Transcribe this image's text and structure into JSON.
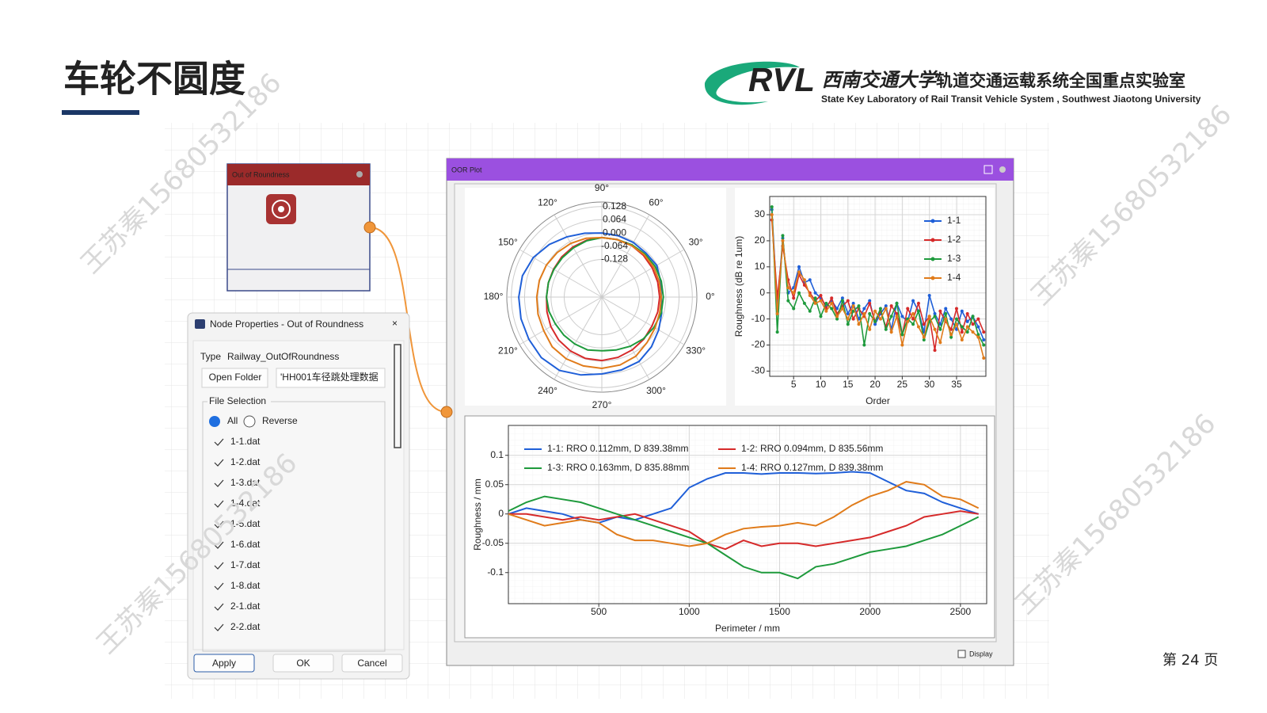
{
  "header": {
    "title": "车轮不圆度",
    "logo_mark": "RVL",
    "university": "西南交通大学",
    "lab": "轨道交通运载系统全国重点实验室",
    "lab_en": "State Key Laboratory of Rail Transit Vehicle System , Southwest Jiaotong University"
  },
  "watermark": "王苏秦15680532186",
  "page_number": "第 24 页",
  "node": {
    "title": "Out of Roundness"
  },
  "dialog": {
    "title": "Node Properties - Out of Roundness",
    "type_label": "Type",
    "type_value": "Railway_OutOfRoundness",
    "open_folder": "Open Folder",
    "folder_path": "'HH001车径跳处理数据",
    "group": "File Selection",
    "all": "All",
    "reverse": "Reverse",
    "files": [
      "1-1.dat",
      "1-2.dat",
      "1-3.dat",
      "1-4.dat",
      "1-5.dat",
      "1-6.dat",
      "1-7.dat",
      "1-8.dat",
      "2-1.dat",
      "2-2.dat"
    ],
    "buttons": [
      "Apply",
      "OK",
      "Cancel"
    ]
  },
  "plot_window": {
    "title": "OOR Plot",
    "display": "Display"
  },
  "chart_data": [
    {
      "type": "polar",
      "theta": [
        0,
        15,
        30,
        45,
        60,
        75,
        90,
        105,
        120,
        135,
        150,
        165,
        180,
        195,
        210,
        225,
        240,
        255,
        270,
        285,
        300,
        315,
        330,
        345
      ],
      "rlim": [
        -0.31,
        0.15
      ],
      "rticks": [
        0.128,
        0.064,
        {
          "value": 0,
          "label": "0.000"
        },
        -0.064,
        -0.128
      ],
      "thetaticks": [
        {
          "value": 0,
          "label": "0°"
        },
        {
          "value": 30,
          "label": "30°"
        },
        {
          "value": 60,
          "label": "60°"
        },
        {
          "value": 90,
          "label": "90°"
        },
        {
          "value": 120,
          "label": "120°"
        },
        {
          "value": 150,
          "label": "150°"
        },
        {
          "value": 180,
          "label": "180°"
        },
        {
          "value": 210,
          "label": "210°"
        },
        {
          "value": 240,
          "label": "240°"
        },
        {
          "value": 270,
          "label": "270°"
        },
        {
          "value": 300,
          "label": "300°"
        },
        {
          "value": 330,
          "label": "330°"
        }
      ],
      "series": [
        {
          "name": "1-1",
          "color": "#1f5fd8",
          "values": [
            -0.022,
            -0.015,
            -0.003,
            -0.008,
            -0.005,
            -0.003,
            0.0,
            0.01,
            0.027,
            0.05,
            0.073,
            0.088,
            0.092,
            0.095,
            0.098,
            0.104,
            0.1,
            0.08,
            0.062,
            0.055,
            0.05,
            0.03,
            0.008,
            -0.01
          ]
        },
        {
          "name": "1-2",
          "color": "#d62a2a",
          "values": [
            -0.03,
            -0.03,
            -0.028,
            -0.025,
            -0.022,
            -0.022,
            -0.022,
            -0.025,
            -0.03,
            -0.035,
            -0.04,
            -0.042,
            -0.042,
            -0.035,
            -0.025,
            -0.015,
            -0.008,
            -0.003,
            -0.003,
            -0.008,
            -0.015,
            -0.022,
            -0.03,
            -0.03
          ]
        },
        {
          "name": "1-3",
          "color": "#1e9a3c",
          "values": [
            -0.012,
            -0.012,
            -0.012,
            -0.015,
            -0.018,
            -0.022,
            -0.022,
            -0.028,
            -0.035,
            -0.04,
            -0.042,
            -0.042,
            -0.042,
            -0.045,
            -0.05,
            -0.05,
            -0.048,
            -0.045,
            -0.05,
            -0.045,
            -0.035,
            -0.025,
            -0.018,
            -0.012
          ]
        },
        {
          "name": "1-4",
          "color": "#e07b1a",
          "values": [
            -0.022,
            -0.022,
            -0.02,
            -0.02,
            -0.022,
            -0.022,
            -0.022,
            -0.015,
            -0.01,
            -0.005,
            0.0,
            0.003,
            0.005,
            0.01,
            0.015,
            0.03,
            0.035,
            0.035,
            0.035,
            0.03,
            0.02,
            0.0,
            -0.012,
            -0.02
          ]
        }
      ]
    },
    {
      "type": "line",
      "markers": true,
      "grid": true,
      "legend": "upper right",
      "xlabel": "Order",
      "ylabel": "Roughness (dB re 1um)",
      "x": [
        1,
        2,
        3,
        4,
        5,
        6,
        7,
        8,
        9,
        10,
        11,
        12,
        13,
        14,
        15,
        16,
        17,
        18,
        19,
        20,
        21,
        22,
        23,
        24,
        25,
        26,
        27,
        28,
        29,
        30,
        31,
        32,
        33,
        34,
        35,
        36,
        37,
        38,
        39,
        40
      ],
      "xlim": [
        0.6,
        40.4
      ],
      "xticks": [
        5,
        10,
        15,
        20,
        25,
        30,
        35
      ],
      "ylim": [
        -32,
        37
      ],
      "yticks": [
        -30,
        -20,
        -10,
        0,
        10,
        20,
        30
      ],
      "series": [
        {
          "name": "1-1",
          "color": "#1f5fd8",
          "values": [
            32,
            -5,
            21,
            0,
            2,
            10,
            4,
            5,
            0,
            -2,
            -5,
            -3,
            -6,
            -2,
            -8,
            -4,
            -10,
            -6,
            -3,
            -12,
            -8,
            -5,
            -14,
            -4,
            -9,
            -11,
            -3,
            -7,
            -15,
            -1,
            -8,
            -12,
            -6,
            -10,
            -14,
            -7,
            -11,
            -9,
            -13,
            -18
          ]
        },
        {
          "name": "1-2",
          "color": "#d62a2a",
          "values": [
            28,
            -2,
            18,
            5,
            -2,
            7,
            3,
            0,
            -3,
            -1,
            -6,
            -2,
            -8,
            -5,
            -3,
            -10,
            -6,
            -9,
            -4,
            -11,
            -7,
            -13,
            -5,
            -8,
            -16,
            -6,
            -10,
            -4,
            -12,
            -9,
            -22,
            -7,
            -11,
            -14,
            -6,
            -15,
            -8,
            -12,
            -10,
            -15
          ]
        },
        {
          "name": "1-3",
          "color": "#1e9a3c",
          "values": [
            33,
            -15,
            22,
            -3,
            -6,
            0,
            -4,
            -7,
            -2,
            -9,
            -4,
            -6,
            -10,
            -3,
            -12,
            -7,
            -5,
            -20,
            -8,
            -11,
            -6,
            -14,
            -9,
            -4,
            -16,
            -10,
            -12,
            -7,
            -18,
            -11,
            -9,
            -14,
            -8,
            -17,
            -10,
            -13,
            -15,
            -9,
            -16,
            -20
          ]
        },
        {
          "name": "1-4",
          "color": "#e07b1a",
          "values": [
            30,
            -8,
            20,
            2,
            0,
            8,
            5,
            -1,
            -4,
            -3,
            -7,
            -4,
            -9,
            -6,
            -10,
            -5,
            -12,
            -8,
            -14,
            -7,
            -10,
            -6,
            -15,
            -9,
            -20,
            -11,
            -8,
            -13,
            -17,
            -9,
            -14,
            -19,
            -10,
            -16,
            -12,
            -18,
            -13,
            -15,
            -17,
            -25
          ]
        }
      ]
    },
    {
      "type": "line",
      "markers": false,
      "grid": true,
      "legend": "upper left",
      "legend_columns": 2,
      "xlabel": "Perimeter / mm",
      "ylabel": "Roughness / mm",
      "x": [
        0,
        100,
        200,
        300,
        400,
        500,
        600,
        700,
        800,
        900,
        1000,
        1100,
        1200,
        1300,
        1400,
        1500,
        1600,
        1700,
        1800,
        1900,
        2000,
        2100,
        2200,
        2300,
        2400,
        2500,
        2600
      ],
      "xlim": [
        0,
        2645
      ],
      "xticks": [
        500,
        1000,
        1500,
        2000,
        2500
      ],
      "ylim": [
        -0.153,
        0.151
      ],
      "yticks": [
        0.1,
        0.05,
        0,
        -0.05,
        -0.1
      ],
      "series": [
        {
          "name": "1-1: RRO 0.112mm, D 839.38mm",
          "color": "#1f5fd8",
          "values": [
            0.0,
            0.01,
            0.005,
            0.0,
            -0.01,
            -0.015,
            -0.005,
            -0.01,
            0.0,
            0.01,
            0.045,
            0.06,
            0.07,
            0.07,
            0.068,
            0.07,
            0.07,
            0.069,
            0.07,
            0.072,
            0.07,
            0.055,
            0.04,
            0.035,
            0.02,
            0.01,
            0.0
          ]
        },
        {
          "name": "1-2: RRO 0.094mm, D 835.56mm",
          "color": "#d62a2a",
          "values": [
            0.0,
            0.0,
            -0.005,
            -0.01,
            -0.005,
            -0.01,
            -0.005,
            0.0,
            -0.01,
            -0.02,
            -0.03,
            -0.05,
            -0.06,
            -0.045,
            -0.055,
            -0.05,
            -0.05,
            -0.055,
            -0.05,
            -0.045,
            -0.04,
            -0.03,
            -0.02,
            -0.005,
            0.0,
            0.005,
            0.0
          ]
        },
        {
          "name": "1-3: RRO 0.163mm, D 835.88mm",
          "color": "#1e9a3c",
          "values": [
            0.005,
            0.02,
            0.03,
            0.025,
            0.02,
            0.01,
            0.0,
            -0.01,
            -0.02,
            -0.03,
            -0.04,
            -0.05,
            -0.07,
            -0.09,
            -0.1,
            -0.1,
            -0.11,
            -0.09,
            -0.085,
            -0.075,
            -0.065,
            -0.06,
            -0.055,
            -0.045,
            -0.035,
            -0.02,
            -0.005
          ]
        },
        {
          "name": "1-4: RRO 0.127mm, D 839.38mm",
          "color": "#e07b1a",
          "values": [
            0.0,
            -0.01,
            -0.02,
            -0.015,
            -0.01,
            -0.015,
            -0.035,
            -0.045,
            -0.045,
            -0.05,
            -0.055,
            -0.05,
            -0.035,
            -0.025,
            -0.022,
            -0.02,
            -0.015,
            -0.02,
            -0.005,
            0.015,
            0.03,
            0.04,
            0.055,
            0.05,
            0.03,
            0.025,
            0.01
          ]
        }
      ]
    }
  ]
}
